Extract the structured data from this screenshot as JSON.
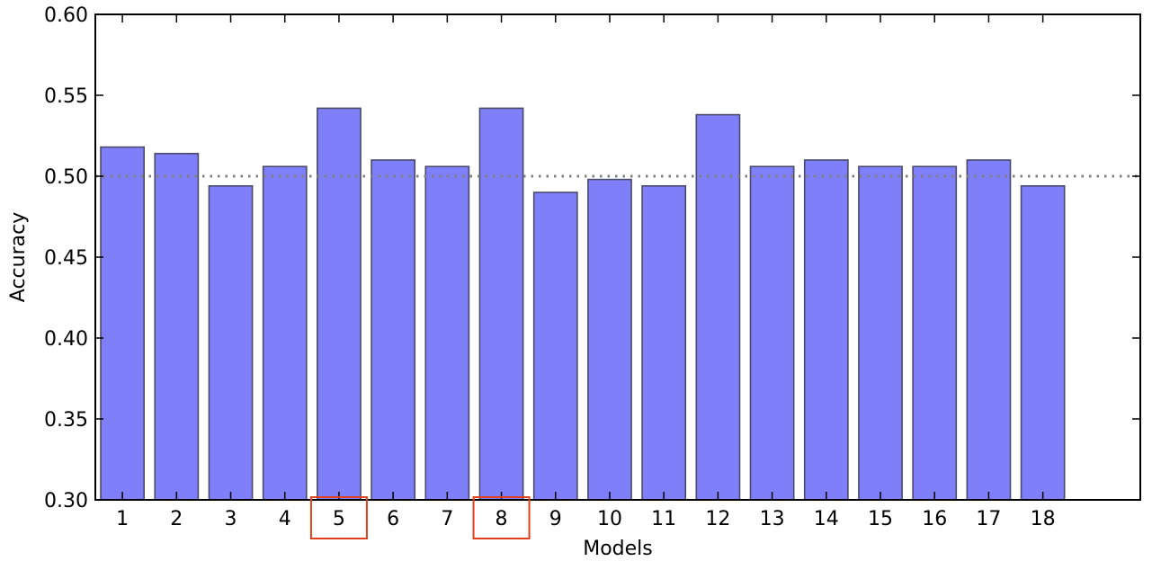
{
  "chart_data": {
    "type": "bar",
    "categories": [
      "1",
      "2",
      "3",
      "4",
      "5",
      "6",
      "7",
      "8",
      "9",
      "10",
      "11",
      "12",
      "13",
      "14",
      "15",
      "16",
      "17",
      "18"
    ],
    "values": [
      0.518,
      0.514,
      0.494,
      0.506,
      0.542,
      0.51,
      0.506,
      0.542,
      0.49,
      0.498,
      0.494,
      0.538,
      0.506,
      0.51,
      0.506,
      0.506,
      0.51,
      0.494
    ],
    "title": "",
    "xlabel": "Models",
    "ylabel": "Accuracy",
    "ylim": [
      0.3,
      0.6
    ],
    "xlim": [
      0.5,
      19.8
    ],
    "yticks": [
      "0.30",
      "0.35",
      "0.40",
      "0.45",
      "0.50",
      "0.55",
      "0.60"
    ],
    "reference_line": {
      "y": 0.5,
      "style": "dotted",
      "color": "#808080"
    },
    "highlighted_categories": [
      "5",
      "8"
    ],
    "highlight_color": "#e0401c",
    "bar_color": "#7f7ffa",
    "bar_edge_color": "#4a4a6a",
    "grid": false
  }
}
